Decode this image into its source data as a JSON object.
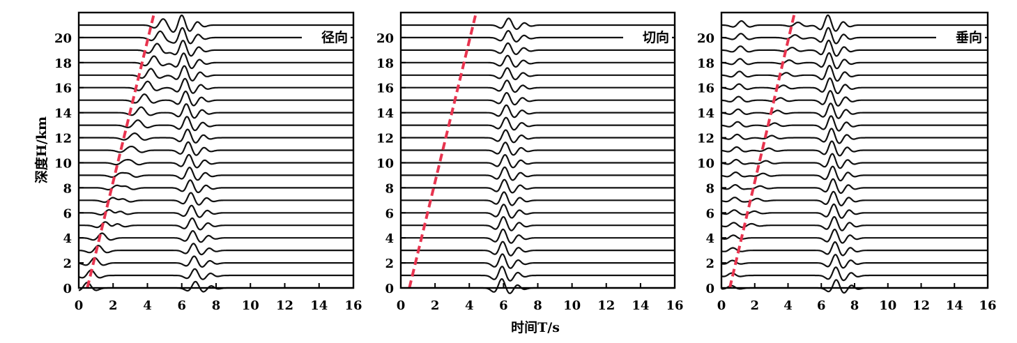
{
  "chart_data": {
    "type": "line",
    "xlabel": "时间T/s",
    "ylabel": "深度H/km",
    "xlim": [
      0,
      16
    ],
    "ylim": [
      0,
      22
    ],
    "xticks": [
      "0",
      "2",
      "4",
      "6",
      "8",
      "10",
      "12",
      "14",
      "16"
    ],
    "yticks": [
      "0",
      "2",
      "4",
      "6",
      "8",
      "10",
      "12",
      "14",
      "16",
      "18",
      "20"
    ],
    "grid": false,
    "trace_depths_km": [
      0,
      1,
      2,
      3,
      4,
      5,
      6,
      7,
      8,
      9,
      10,
      11,
      12,
      13,
      14,
      15,
      16,
      17,
      18,
      19,
      20,
      21
    ],
    "moveout_line": {
      "time_at_0km": 0.5,
      "time_at_22km": 4.4
    },
    "panels": [
      {
        "label": "径向",
        "direct_arrival": {
          "time_at_0km": 6.8,
          "time_at_21km": 6.0,
          "amplitude_top": 0.7,
          "amplitude_bottom": 1.1
        },
        "early_arrival": {
          "time_at_0km": 0.5,
          "time_at_21km": 5.0,
          "amplitude_top": 0.6,
          "amplitude_bottom": 0.15
        },
        "mid_arrival": {
          "time_at_5km": 2.2,
          "time_at_21km": 4.9,
          "amplitude": 0.55
        }
      },
      {
        "label": "切向",
        "direct_arrival": {
          "time_at_0km": 5.9,
          "time_at_21km": 6.3,
          "amplitude_top": 1.0,
          "amplitude_bottom": 0.75
        },
        "early_arrival": {
          "time_at_0km": 0.0,
          "time_at_21km": 0.0,
          "amplitude_top": 0.0,
          "amplitude_bottom": 0.0
        },
        "mid_arrival": {
          "time_at_5km": 0.0,
          "time_at_21km": 0.0,
          "amplitude": 0.0
        }
      },
      {
        "label": "垂向",
        "direct_arrival": {
          "time_at_0km": 6.9,
          "time_at_21km": 6.4,
          "amplitude_top": 0.9,
          "amplitude_bottom": 1.1
        },
        "early_arrival": {
          "time_at_0km": 0.6,
          "time_at_21km": 1.2,
          "amplitude_top": 0.25,
          "amplitude_bottom": 0.45
        },
        "mid_arrival": {
          "time_at_5km": 1.8,
          "time_at_21km": 4.6,
          "amplitude": 0.3
        }
      }
    ]
  }
}
